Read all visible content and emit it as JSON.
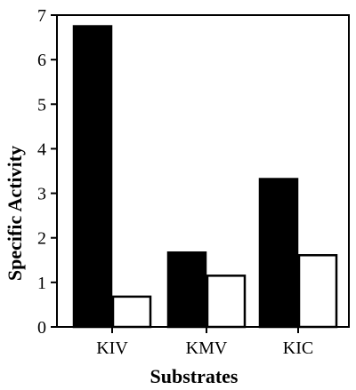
{
  "chart_data": {
    "type": "bar",
    "title": "",
    "xlabel": "Substrates",
    "ylabel": "Specific Activity",
    "categories": [
      "KIV",
      "KMV",
      "KIC"
    ],
    "series": [
      {
        "values": [
          6.75,
          1.67,
          3.32
        ],
        "color": "#000000"
      },
      {
        "values": [
          0.68,
          1.15,
          1.61
        ],
        "color": "#ffffff"
      }
    ],
    "ylim": [
      0,
      7
    ],
    "yticks": [
      0,
      1,
      2,
      3,
      4,
      5,
      6,
      7
    ],
    "grid": false,
    "legend": "none"
  }
}
